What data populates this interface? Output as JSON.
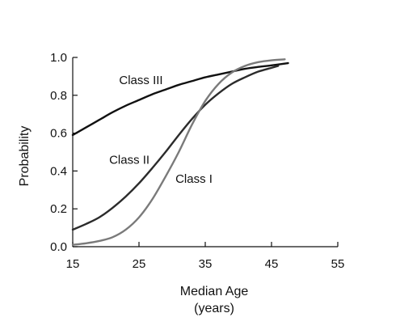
{
  "chart_data": {
    "type": "line",
    "title": "",
    "xlabel": "Median Age",
    "xlabel_unit": "(years)",
    "ylabel": "Probability",
    "xlim": [
      15,
      55
    ],
    "ylim": [
      0,
      1.0
    ],
    "xticks": [
      15,
      25,
      35,
      45,
      55
    ],
    "yticks": [
      0.0,
      0.2,
      0.4,
      0.6,
      0.8,
      1.0
    ],
    "xtick_labels": [
      "15",
      "25",
      "35",
      "45",
      "55"
    ],
    "ytick_labels": [
      "0.0",
      "0.2",
      "0.4",
      "0.6",
      "0.8",
      "1.0"
    ],
    "grid": false,
    "legend": "inline labels",
    "series": [
      {
        "name": "Class III",
        "color": "#111111",
        "x": [
          15,
          17,
          19,
          21,
          23,
          25,
          27,
          29,
          31,
          33,
          35,
          37,
          39,
          41,
          43,
          45,
          47.5
        ],
        "y": [
          0.59,
          0.63,
          0.67,
          0.71,
          0.745,
          0.775,
          0.805,
          0.83,
          0.855,
          0.875,
          0.895,
          0.91,
          0.925,
          0.94,
          0.95,
          0.958,
          0.97
        ],
        "label_anchor": [
          22,
          0.88
        ]
      },
      {
        "name": "Class II",
        "color": "#2b2b2b",
        "x": [
          15,
          17,
          19,
          21,
          23,
          25,
          27,
          29,
          31,
          33,
          35,
          37,
          39,
          41,
          43,
          45,
          46
        ],
        "y": [
          0.09,
          0.12,
          0.155,
          0.205,
          0.265,
          0.335,
          0.415,
          0.5,
          0.59,
          0.675,
          0.75,
          0.81,
          0.86,
          0.895,
          0.925,
          0.945,
          0.955
        ],
        "label_anchor": [
          20.5,
          0.46
        ]
      },
      {
        "name": "Class I",
        "color": "#7a7a7a",
        "x": [
          15,
          17,
          19,
          21,
          23,
          25,
          27,
          29,
          31,
          33,
          35,
          37,
          39,
          41,
          43,
          45,
          47
        ],
        "y": [
          0.01,
          0.018,
          0.03,
          0.05,
          0.09,
          0.155,
          0.25,
          0.37,
          0.5,
          0.645,
          0.77,
          0.86,
          0.92,
          0.955,
          0.975,
          0.985,
          0.99
        ],
        "label_anchor": [
          30.5,
          0.36
        ]
      }
    ]
  }
}
